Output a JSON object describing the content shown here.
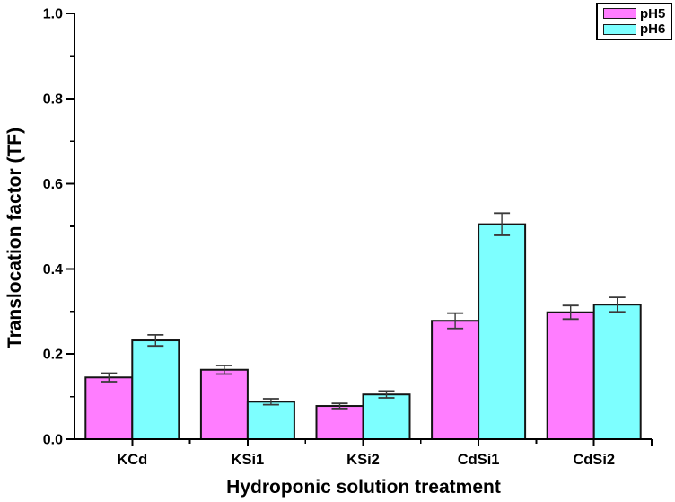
{
  "chart_data": {
    "type": "bar",
    "title": "",
    "xlabel": "Hydroponic solution treatment",
    "ylabel": "Translocation factor (TF)",
    "categories": [
      "KCd",
      "KSi1",
      "KSi2",
      "CdSi1",
      "CdSi2"
    ],
    "series": [
      {
        "name": "pH5",
        "color": "#FF7DFF",
        "values": [
          0.145,
          0.163,
          0.078,
          0.278,
          0.298
        ],
        "errors": [
          0.01,
          0.01,
          0.006,
          0.018,
          0.016
        ]
      },
      {
        "name": "pH6",
        "color": "#7DFFFF",
        "values": [
          0.232,
          0.088,
          0.105,
          0.505,
          0.316
        ],
        "errors": [
          0.013,
          0.007,
          0.008,
          0.026,
          0.017
        ]
      }
    ],
    "ylim": [
      0.0,
      1.0
    ],
    "y_major_ticks": [
      0.0,
      0.2,
      0.4,
      0.6,
      0.8,
      1.0
    ],
    "y_tick_labels": [
      "0.0",
      "0.2",
      "0.4",
      "0.6",
      "0.8",
      "1.0"
    ],
    "y_minor_step": 0.1,
    "grid": false,
    "legend": {
      "position": "top-right",
      "entries": [
        "pH5",
        "pH6"
      ]
    },
    "error_bar_color": "#3a3a3a"
  },
  "style": {
    "background": "#ffffff",
    "axis_color": "#000000",
    "text_color": "#000000",
    "bar_outline_color": "#141414"
  }
}
